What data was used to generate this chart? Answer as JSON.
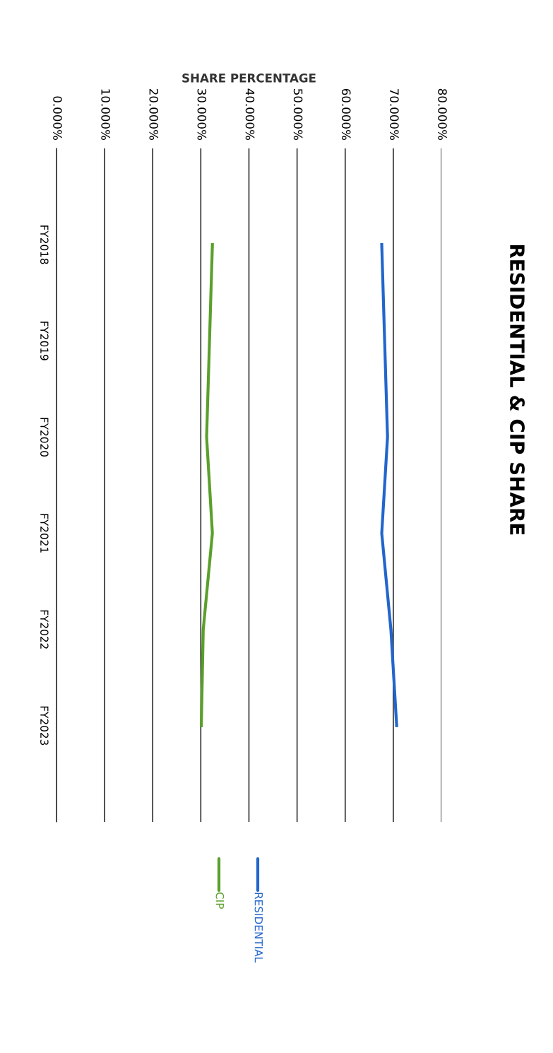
{
  "chart_data": {
    "type": "line",
    "orientation": "horizontal",
    "title": "RESIDENTIAL & CIP SHARE",
    "xlabel": "SHARE PERCENTAGE",
    "categories": [
      "FY2018",
      "FY2019",
      "FY2020",
      "FY2021",
      "FY2022",
      "FY2023"
    ],
    "series": [
      {
        "name": "RESIDENTIAL",
        "color": "#2266cc",
        "values": [
          67.6,
          68.2,
          68.8,
          67.6,
          69.5,
          70.7
        ]
      },
      {
        "name": "CIP",
        "color": "#5aa02c",
        "values": [
          32.4,
          31.8,
          31.2,
          32.4,
          30.5,
          30.1
        ]
      }
    ],
    "xlim": [
      0,
      80
    ],
    "xticks": [
      {
        "value": 0,
        "label": "0.000%"
      },
      {
        "value": 10,
        "label": "10.000%"
      },
      {
        "value": 20,
        "label": "20.000%"
      },
      {
        "value": 30,
        "label": "30.000%"
      },
      {
        "value": 40,
        "label": "40.000%"
      },
      {
        "value": 50,
        "label": "50.000%"
      },
      {
        "value": 60,
        "label": "60.000%"
      },
      {
        "value": 70,
        "label": "70.000%"
      },
      {
        "value": 80,
        "label": "80.000%"
      }
    ],
    "grid": "x",
    "legend": "bottom",
    "marker": "none",
    "line_style": "solid"
  }
}
